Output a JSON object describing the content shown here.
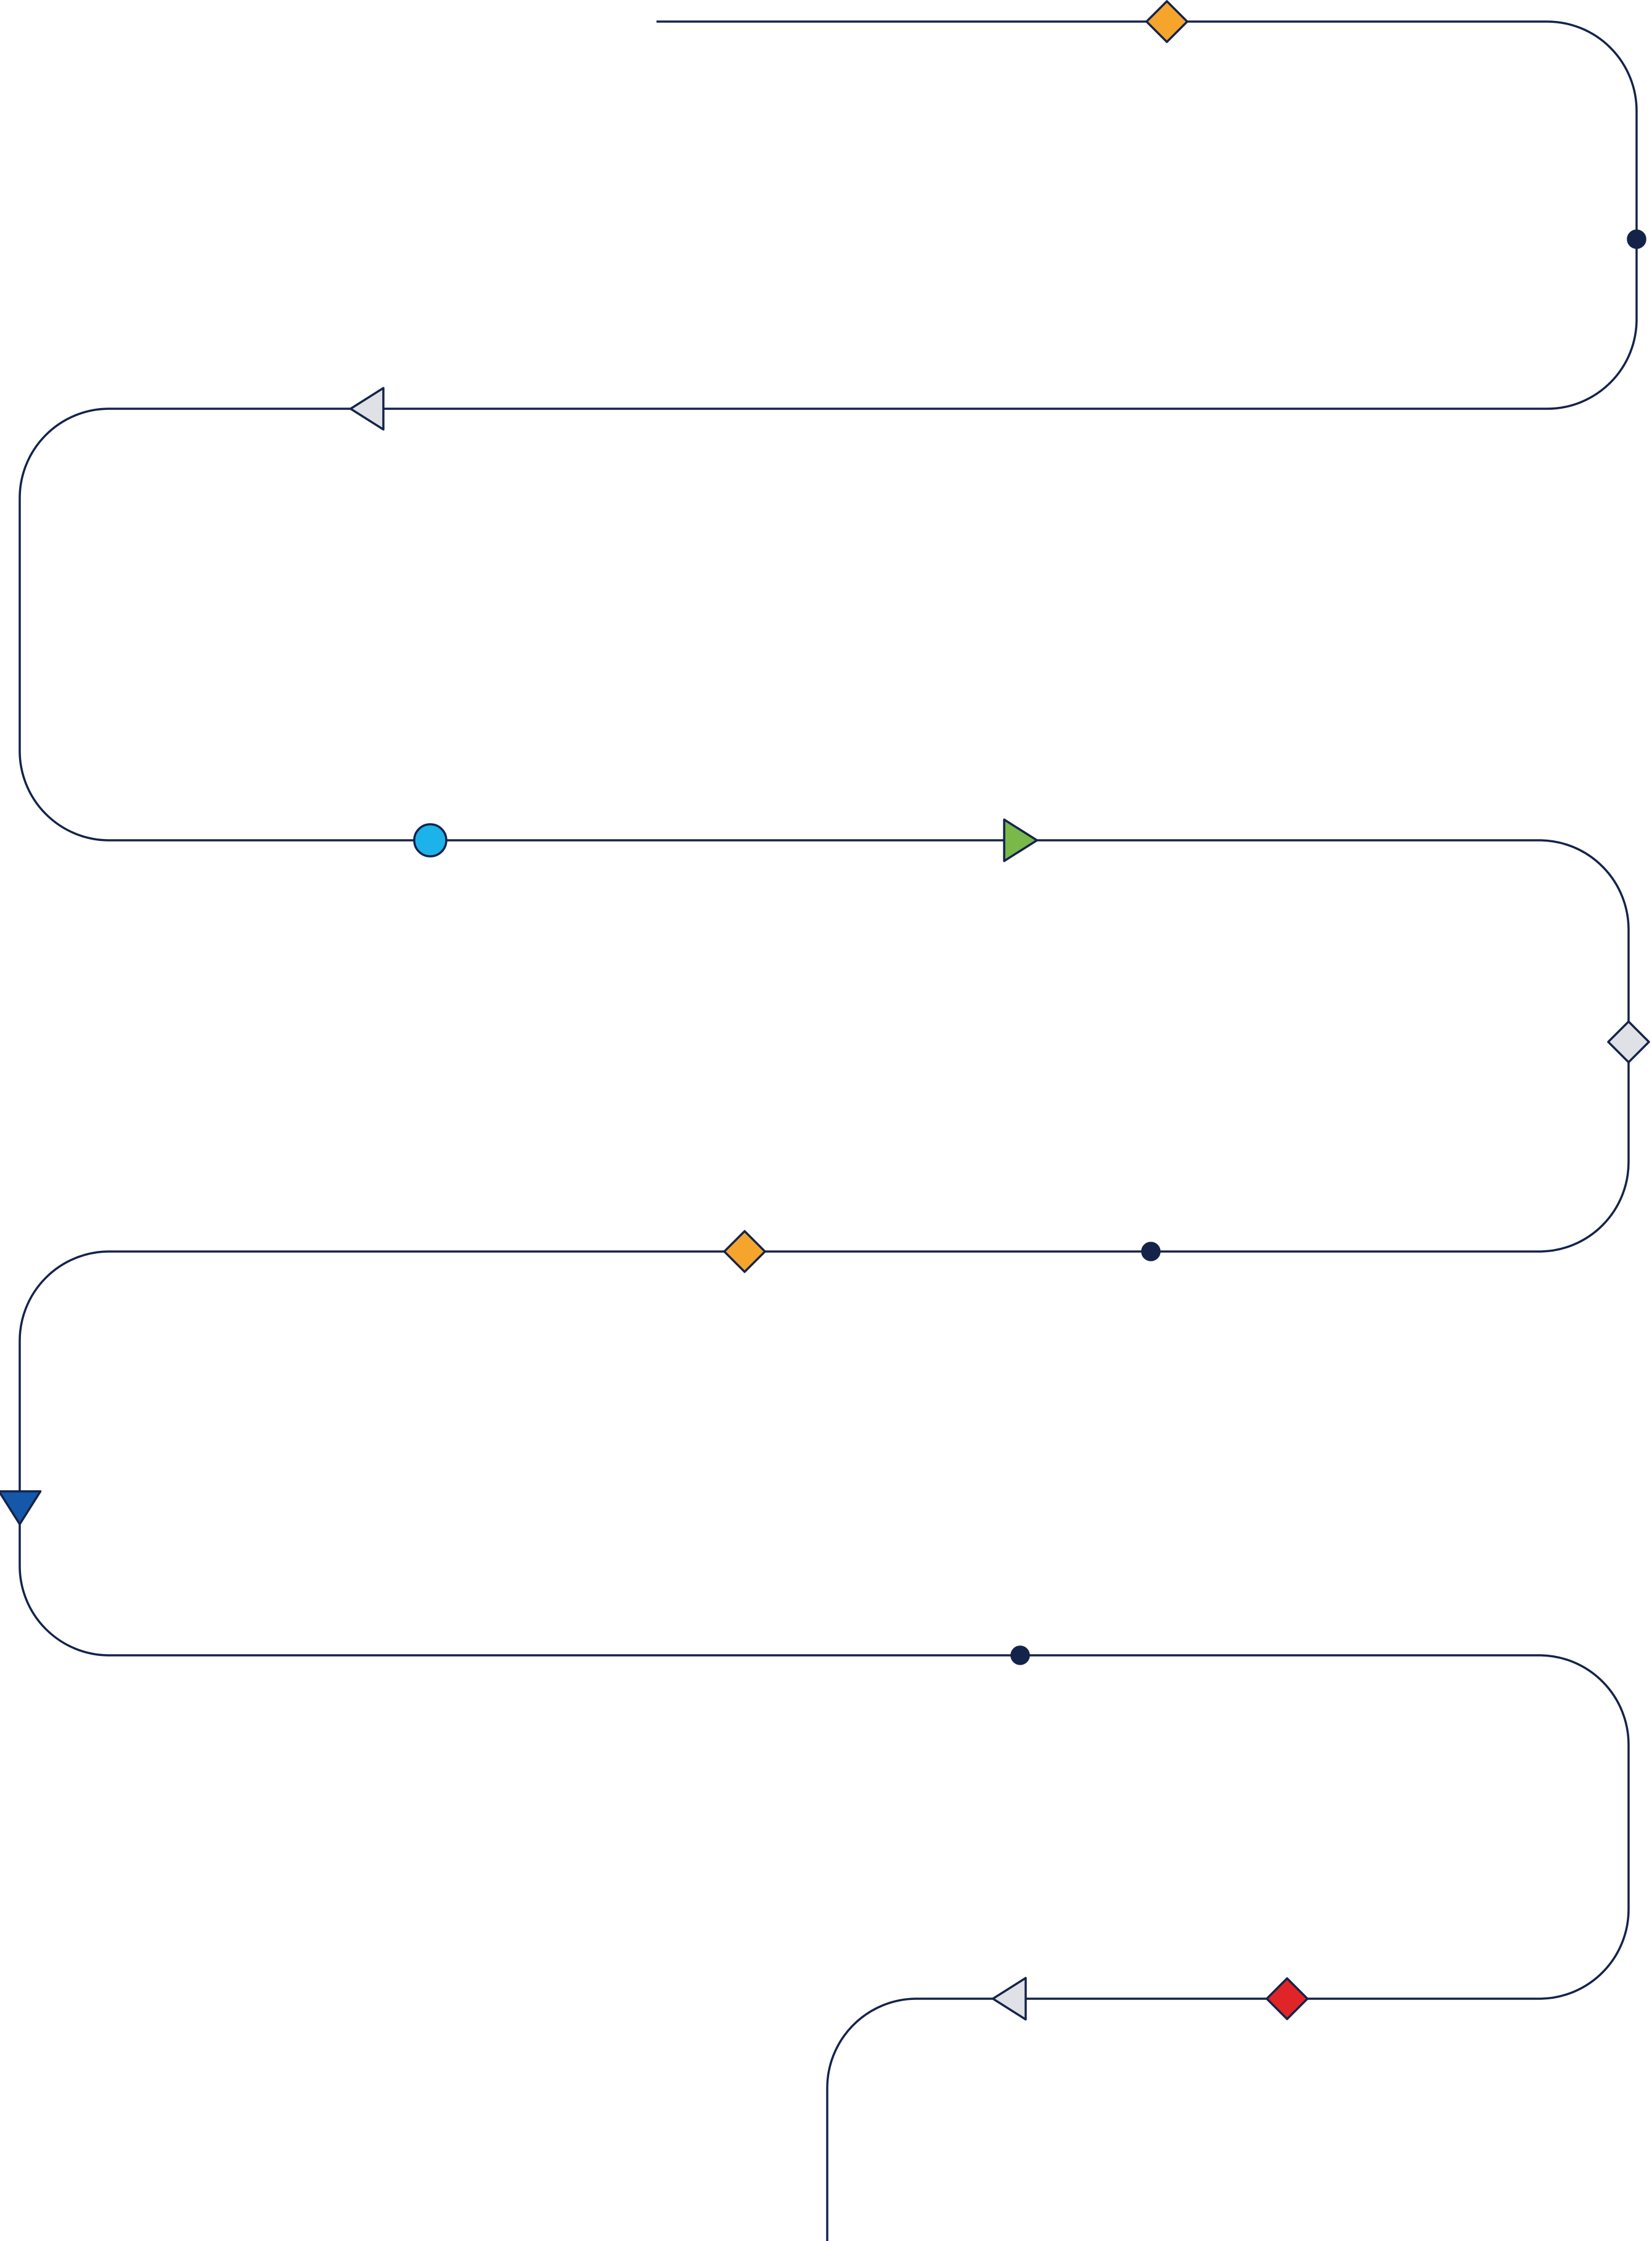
{
  "diagram": {
    "type": "serpentine-timeline",
    "colors": {
      "background": "#ffffff",
      "path_stroke": "#14234a",
      "marker_stroke": "#14234a",
      "orange": "#f5a52c",
      "navy": "#14234a",
      "light_gray": "#dfe1e6",
      "sky_blue": "#1bb3ea",
      "green": "#7ab84a",
      "royal_blue": "#1557a8",
      "red": "#e02428"
    },
    "markers": [
      {
        "name": "marker-1-orange-diamond",
        "shape": "diamond",
        "fill": "orange"
      },
      {
        "name": "marker-2-navy-dot",
        "shape": "dot",
        "fill": "navy"
      },
      {
        "name": "marker-3-gray-triangle-left",
        "shape": "triangle-left",
        "fill": "light_gray"
      },
      {
        "name": "marker-4-blue-circle",
        "shape": "circle",
        "fill": "sky_blue"
      },
      {
        "name": "marker-5-green-triangle-right",
        "shape": "triangle-right",
        "fill": "green"
      },
      {
        "name": "marker-6-gray-diamond",
        "shape": "diamond",
        "fill": "light_gray"
      },
      {
        "name": "marker-7-navy-dot",
        "shape": "dot",
        "fill": "navy"
      },
      {
        "name": "marker-8-orange-diamond",
        "shape": "diamond",
        "fill": "orange"
      },
      {
        "name": "marker-9-blue-triangle-down",
        "shape": "triangle-down",
        "fill": "royal_blue"
      },
      {
        "name": "marker-10-navy-dot",
        "shape": "dot",
        "fill": "navy"
      },
      {
        "name": "marker-11-red-diamond",
        "shape": "diamond",
        "fill": "red"
      },
      {
        "name": "marker-12-gray-triangle-left",
        "shape": "triangle-left",
        "fill": "light_gray"
      }
    ]
  }
}
